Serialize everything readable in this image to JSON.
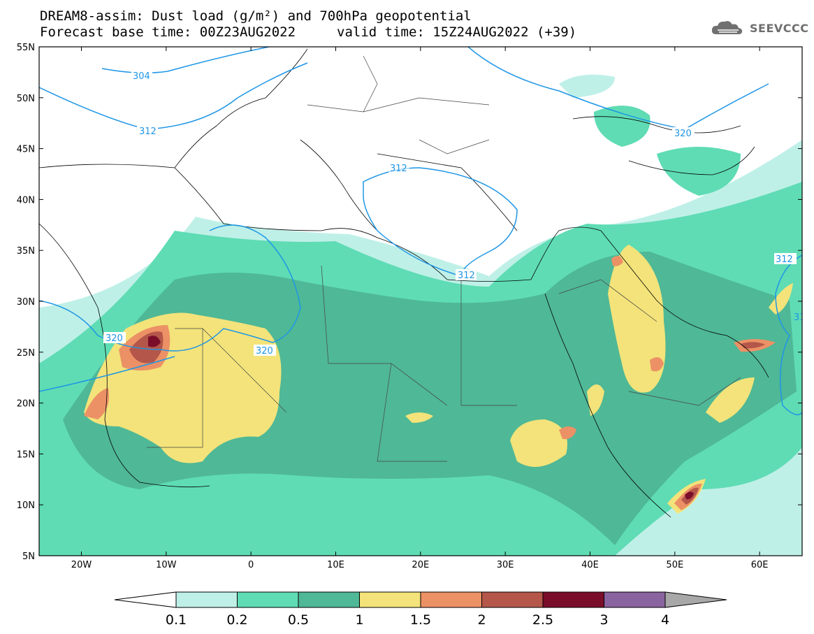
{
  "header": {
    "title": "DREAM8-assim: Dust load (g/m²) and 700hPa geopotential",
    "base_time": "Forecast base time: 00Z23AUG2022",
    "valid_time": "valid time: 15Z24AUG2022 (+39)"
  },
  "logo": {
    "text": "SEEVCCC",
    "icon": "cloud-icon"
  },
  "map": {
    "lat_labels": [
      "55N",
      "50N",
      "45N",
      "40N",
      "35N",
      "30N",
      "25N",
      "20N",
      "15N",
      "10N",
      "5N"
    ],
    "lon_labels": [
      "20W",
      "10W",
      "0",
      "10E",
      "20E",
      "30E",
      "40E",
      "50E",
      "60E"
    ],
    "contour_labels": [
      "304",
      "312",
      "320",
      "312",
      "312",
      "320",
      "312",
      "31"
    ]
  },
  "legend": {
    "levels": [
      "0.1",
      "0.2",
      "0.5",
      "1",
      "1.5",
      "2",
      "2.5",
      "3",
      "4"
    ],
    "colors": [
      "#bff0e8",
      "#5fdcb4",
      "#4fb896",
      "#f3e37a",
      "#ec9166",
      "#b4574a",
      "#7a0e2a",
      "#8a64a0"
    ],
    "low_color": "#ffffff",
    "high_color": "#a8a8a8"
  }
}
